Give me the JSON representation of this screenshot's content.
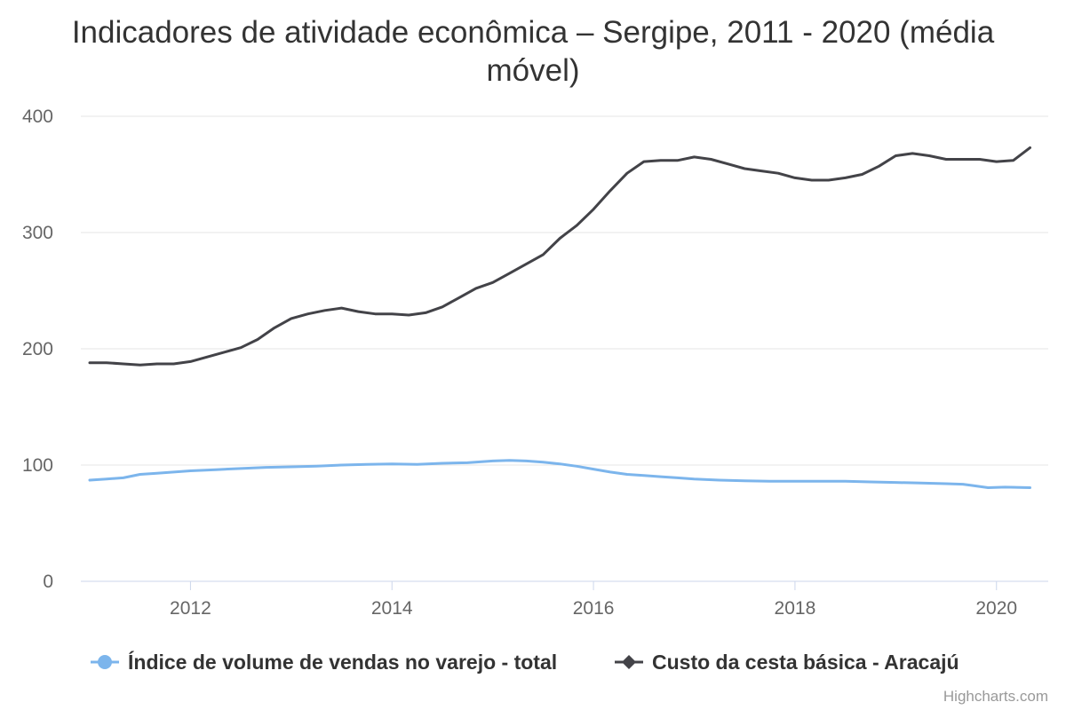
{
  "chart_data": {
    "type": "line",
    "title_line1": "Indicadores de atividade econômica – Sergipe, 2011 - 2020 (média",
    "title_line2": "móvel)",
    "xlabel": "",
    "ylabel": "",
    "xlim": [
      "2011-01",
      "2020-06"
    ],
    "ylim": [
      0,
      400
    ],
    "y_ticks": [
      0,
      100,
      200,
      300,
      400
    ],
    "x_ticks": [
      "2012",
      "2014",
      "2016",
      "2018",
      "2020"
    ],
    "grid": "horizontal",
    "legend_position": "bottom-center",
    "colors": {
      "retail": "#7cb5ec",
      "basket": "#434348"
    },
    "series": [
      {
        "name": "Índice de volume de vendas no varejo - total",
        "marker": "circle",
        "points": [
          [
            "2011-01",
            87
          ],
          [
            "2011-03",
            88
          ],
          [
            "2011-05",
            89
          ],
          [
            "2011-07",
            92
          ],
          [
            "2011-09",
            93
          ],
          [
            "2011-11",
            94
          ],
          [
            "2012-01",
            95
          ],
          [
            "2012-04",
            96
          ],
          [
            "2012-07",
            97
          ],
          [
            "2012-10",
            98
          ],
          [
            "2013-01",
            98.5
          ],
          [
            "2013-04",
            99
          ],
          [
            "2013-07",
            100
          ],
          [
            "2013-10",
            100.5
          ],
          [
            "2014-01",
            101
          ],
          [
            "2014-04",
            100.5
          ],
          [
            "2014-07",
            101.5
          ],
          [
            "2014-10",
            102
          ],
          [
            "2015-01",
            103.5
          ],
          [
            "2015-03",
            104
          ],
          [
            "2015-05",
            103.5
          ],
          [
            "2015-07",
            102.5
          ],
          [
            "2015-09",
            101
          ],
          [
            "2015-11",
            99
          ],
          [
            "2016-01",
            96.5
          ],
          [
            "2016-03",
            94
          ],
          [
            "2016-05",
            92
          ],
          [
            "2016-07",
            91
          ],
          [
            "2016-09",
            90
          ],
          [
            "2016-11",
            89
          ],
          [
            "2017-01",
            88
          ],
          [
            "2017-04",
            87
          ],
          [
            "2017-07",
            86.5
          ],
          [
            "2017-10",
            86
          ],
          [
            "2018-01",
            86
          ],
          [
            "2018-04",
            86
          ],
          [
            "2018-07",
            86
          ],
          [
            "2018-10",
            85.5
          ],
          [
            "2019-01",
            85
          ],
          [
            "2019-04",
            84.5
          ],
          [
            "2019-07",
            84
          ],
          [
            "2019-09",
            83.5
          ],
          [
            "2019-10",
            82.5
          ],
          [
            "2019-12",
            80.5
          ],
          [
            "2020-02",
            81
          ],
          [
            "2020-05",
            80.5
          ]
        ]
      },
      {
        "name": "Custo da cesta básica - Aracajú",
        "marker": "diamond",
        "points": [
          [
            "2011-01",
            188
          ],
          [
            "2011-03",
            188
          ],
          [
            "2011-05",
            187
          ],
          [
            "2011-07",
            186
          ],
          [
            "2011-09",
            187
          ],
          [
            "2011-11",
            187
          ],
          [
            "2012-01",
            189
          ],
          [
            "2012-03",
            193
          ],
          [
            "2012-05",
            197
          ],
          [
            "2012-07",
            201
          ],
          [
            "2012-09",
            208
          ],
          [
            "2012-11",
            218
          ],
          [
            "2013-01",
            226
          ],
          [
            "2013-03",
            230
          ],
          [
            "2013-05",
            233
          ],
          [
            "2013-07",
            235
          ],
          [
            "2013-09",
            232
          ],
          [
            "2013-11",
            230
          ],
          [
            "2014-01",
            230
          ],
          [
            "2014-03",
            229
          ],
          [
            "2014-05",
            231
          ],
          [
            "2014-07",
            236
          ],
          [
            "2014-09",
            244
          ],
          [
            "2014-11",
            252
          ],
          [
            "2015-01",
            257
          ],
          [
            "2015-03",
            265
          ],
          [
            "2015-05",
            273
          ],
          [
            "2015-07",
            281
          ],
          [
            "2015-09",
            295
          ],
          [
            "2015-11",
            306
          ],
          [
            "2016-01",
            320
          ],
          [
            "2016-03",
            336
          ],
          [
            "2016-05",
            351
          ],
          [
            "2016-07",
            361
          ],
          [
            "2016-09",
            362
          ],
          [
            "2016-11",
            362
          ],
          [
            "2017-01",
            365
          ],
          [
            "2017-03",
            363
          ],
          [
            "2017-05",
            359
          ],
          [
            "2017-07",
            355
          ],
          [
            "2017-09",
            353
          ],
          [
            "2017-11",
            351
          ],
          [
            "2018-01",
            347
          ],
          [
            "2018-03",
            345
          ],
          [
            "2018-05",
            345
          ],
          [
            "2018-07",
            347
          ],
          [
            "2018-09",
            350
          ],
          [
            "2018-11",
            357
          ],
          [
            "2019-01",
            366
          ],
          [
            "2019-03",
            368
          ],
          [
            "2019-05",
            366
          ],
          [
            "2019-07",
            363
          ],
          [
            "2019-09",
            363
          ],
          [
            "2019-11",
            363
          ],
          [
            "2020-01",
            361
          ],
          [
            "2020-03",
            362
          ],
          [
            "2020-05",
            373
          ]
        ]
      }
    ]
  },
  "credits": "Highcharts.com"
}
